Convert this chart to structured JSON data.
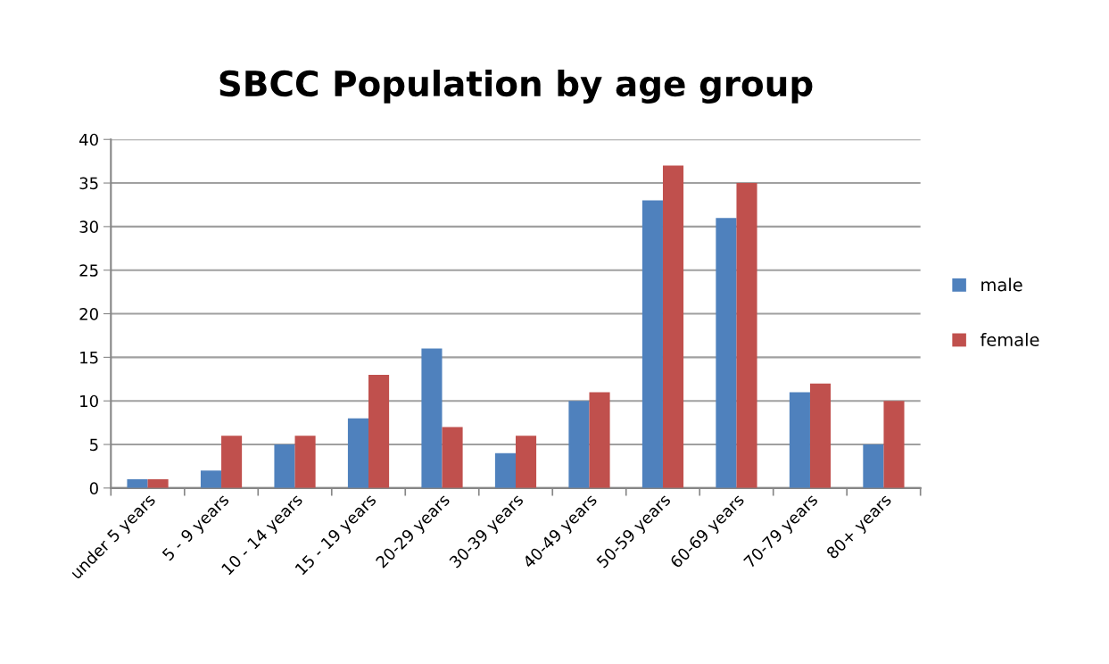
{
  "chart_data": {
    "type": "bar",
    "title": "SBCC Population by age group",
    "categories": [
      "under 5 years",
      "5 - 9 years",
      "10 - 14 years",
      "15 - 19 years",
      "20-29 years",
      "30-39 years",
      "40-49 years",
      "50-59 years",
      "60-69 years",
      "70-79 years",
      "80+ years"
    ],
    "series": [
      {
        "name": "male",
        "color": "#4f81bd",
        "values": [
          1,
          2,
          5,
          8,
          16,
          4,
          10,
          33,
          31,
          11,
          5
        ]
      },
      {
        "name": "female",
        "color": "#c0504d",
        "values": [
          1,
          6,
          6,
          13,
          7,
          6,
          11,
          37,
          35,
          12,
          10
        ]
      }
    ],
    "ylim": [
      0,
      40
    ],
    "yticks": [
      0,
      5,
      10,
      15,
      20,
      25,
      30,
      35,
      40
    ],
    "grid": "y",
    "legend": "right"
  }
}
